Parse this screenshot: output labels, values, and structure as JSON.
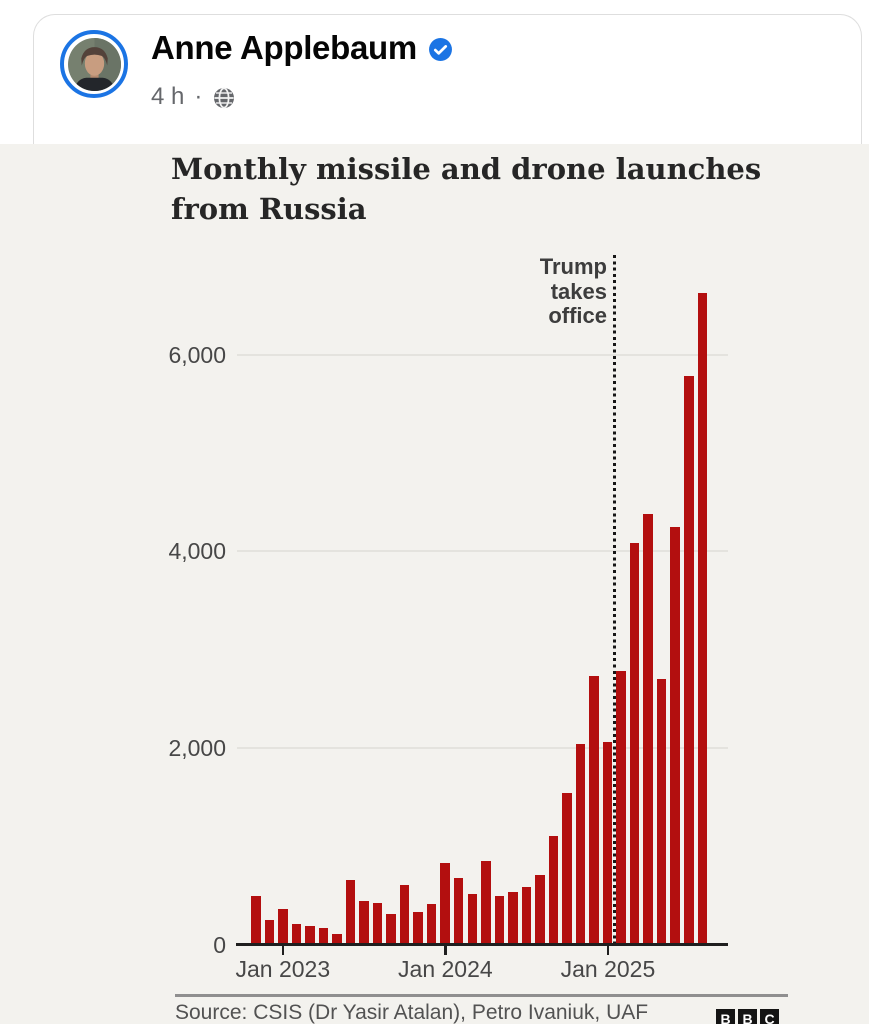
{
  "post": {
    "author": "Anne Applebaum",
    "timestamp": "4 h",
    "meta_separator": "·",
    "privacy_icon": "globe",
    "verified_icon": "verified-check",
    "badge_color": "#1b74e4"
  },
  "chart": {
    "title": "Monthly missile and drone launches from Russia",
    "annotation": "Trump takes office",
    "source": "Source: CSIS (Dr Yasir Atalan), Petro Ivaniuk, UAF",
    "logo": [
      "B",
      "B",
      "C"
    ],
    "colors": {
      "bar": "#b30f0f",
      "background": "#f3f2ee",
      "axis": "#1f1f1f",
      "gridline": "#e4e3de"
    }
  },
  "chart_data": {
    "type": "bar",
    "title": "Monthly missile and drone launches from Russia",
    "x": [
      "Nov 2022",
      "Dec 2022",
      "Jan 2023",
      "Feb 2023",
      "Mar 2023",
      "Apr 2023",
      "May 2023",
      "Jun 2023",
      "Jul 2023",
      "Aug 2023",
      "Sep 2023",
      "Oct 2023",
      "Nov 2023",
      "Dec 2023",
      "Jan 2024",
      "Feb 2024",
      "Mar 2024",
      "Apr 2024",
      "May 2024",
      "Jun 2024",
      "Jul 2024",
      "Aug 2024",
      "Sep 2024",
      "Oct 2024",
      "Nov 2024",
      "Dec 2024",
      "Jan 2025",
      "Feb 2025",
      "Mar 2025",
      "Apr 2025",
      "May 2025",
      "Jun 2025",
      "Jul 2025",
      "Aug 2025"
    ],
    "values": [
      500,
      255,
      365,
      215,
      190,
      175,
      115,
      660,
      445,
      430,
      315,
      615,
      340,
      415,
      830,
      685,
      515,
      850,
      500,
      540,
      585,
      710,
      1110,
      1545,
      2040,
      2735,
      2060,
      2780,
      4090,
      4380,
      2700,
      4245,
      5780,
      6630
    ],
    "x_tick_labels": [
      "Jan 2023",
      "Jan 2024",
      "Jan 2025"
    ],
    "y_ticks": [
      0,
      2000,
      4000,
      6000
    ],
    "y_tick_labels": [
      "0",
      "2,000",
      "4,000",
      "6,000"
    ],
    "ylim": [
      0,
      6800
    ],
    "grid": true,
    "legend": false,
    "annotation": {
      "label": "Trump takes office",
      "x": "Jan 2025",
      "style": "vertical-dotted-line"
    },
    "bar_color": "#b30f0f"
  }
}
